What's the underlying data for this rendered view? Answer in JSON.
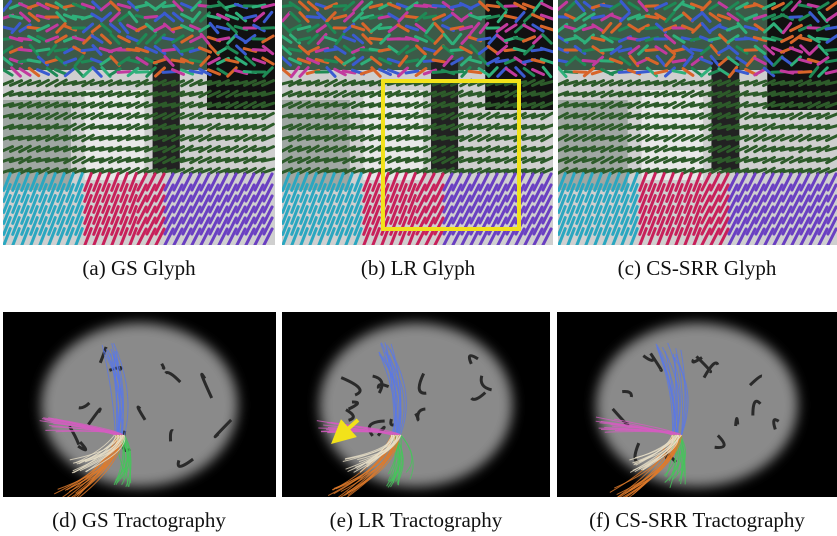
{
  "panels": [
    {
      "caption": "(a) GS Glyph"
    },
    {
      "caption": "(b) LR Glyph"
    },
    {
      "caption": "(c) CS-SRR Glyph"
    },
    {
      "caption": "(d) GS Tractography"
    },
    {
      "caption": "(e) LR Tractography"
    },
    {
      "caption": "(f) CS-SRR Tractography"
    }
  ]
}
